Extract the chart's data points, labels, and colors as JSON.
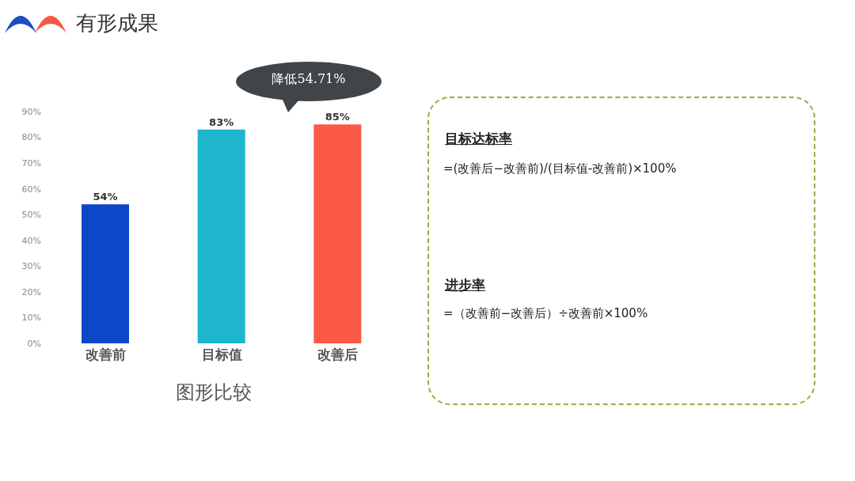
{
  "chart_data": [
    {
      "type": "bar",
      "title": "有形成果",
      "xlabel": "图形比较",
      "annotations": [
        "降低54.71%"
      ],
      "categories": [
        "改善前",
        "目标值",
        "改善后"
      ],
      "values": [
        54,
        83,
        85
      ],
      "colors": [
        "#0c47c9",
        "#1db6cc",
        "#fb5a47"
      ],
      "value_labels": [
        "54%",
        "83%",
        "85%"
      ],
      "ylim": [
        0,
        90
      ],
      "yticks": [
        {
          "value": 0,
          "label": "0%"
        },
        {
          "value": 10,
          "label": "10%"
        },
        {
          "value": 20,
          "label": "20%"
        },
        {
          "value": 30,
          "label": "30%"
        },
        {
          "value": 40,
          "label": "40%"
        },
        {
          "value": 50,
          "label": "50%"
        },
        {
          "value": 60,
          "label": "60%"
        },
        {
          "value": 70,
          "label": "70%"
        },
        {
          "value": 80,
          "label": "80%"
        },
        {
          "value": 90,
          "label": "90%"
        }
      ]
    },
    {
      "type": "other",
      "annotations": [
        "目标达标率",
        "=(改善后−改善前)/(目标值-改善前)×100%",
        "进步率",
        "=（改善前−改善后）÷改善前×100%"
      ]
    }
  ]
}
